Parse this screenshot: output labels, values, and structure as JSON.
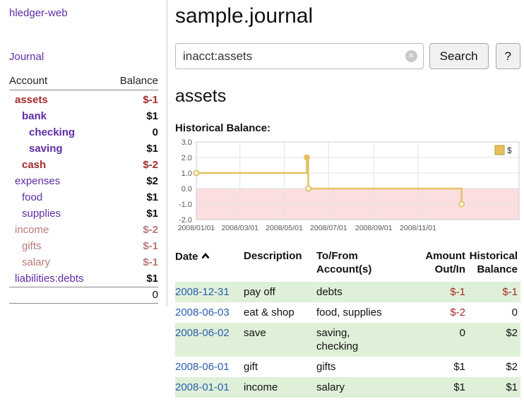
{
  "app_title": "hledger-web",
  "colors": {
    "purple": "#5f2ca5",
    "red": "#a32c2c",
    "rose": "#b97a7a",
    "date_blue": "#2a5db0",
    "row_green": "#dff0d8"
  },
  "sidebar": {
    "journal_link": "Journal",
    "accounts": {
      "header_account": "Account",
      "header_balance": "Balance",
      "rows": [
        {
          "account": "assets",
          "balance": "$-1",
          "indent": 0,
          "bold": true,
          "account_color": "red",
          "balance_color": "red"
        },
        {
          "account": "bank",
          "balance": "$1",
          "indent": 1,
          "bold": true,
          "account_color": "purple",
          "balance_color": "black"
        },
        {
          "account": "checking",
          "balance": "0",
          "indent": 2,
          "bold": true,
          "account_color": "purple",
          "balance_color": "black"
        },
        {
          "account": "saving",
          "balance": "$1",
          "indent": 2,
          "bold": true,
          "account_color": "purple",
          "balance_color": "black"
        },
        {
          "account": "cash",
          "balance": "$-2",
          "indent": 1,
          "bold": true,
          "account_color": "red",
          "balance_color": "red"
        },
        {
          "account": "expenses",
          "balance": "$2",
          "indent": 0,
          "bold": false,
          "account_color": "purple",
          "balance_color": "black"
        },
        {
          "account": "food",
          "balance": "$1",
          "indent": 1,
          "bold": false,
          "account_color": "purple",
          "balance_color": "black"
        },
        {
          "account": "supplies",
          "balance": "$1",
          "indent": 1,
          "bold": false,
          "account_color": "purple",
          "balance_color": "black"
        },
        {
          "account": "income",
          "balance": "$-2",
          "indent": 0,
          "bold": false,
          "account_color": "rose",
          "balance_color": "rose"
        },
        {
          "account": "gifts",
          "balance": "$-1",
          "indent": 1,
          "bold": false,
          "account_color": "rose",
          "balance_color": "rose"
        },
        {
          "account": "salary",
          "balance": "$-1",
          "indent": 1,
          "bold": false,
          "account_color": "rose",
          "balance_color": "rose"
        },
        {
          "account": "liabilities:debts",
          "balance": "$1",
          "indent": 0,
          "bold": false,
          "account_color": "purple",
          "balance_color": "black"
        }
      ],
      "total": "0"
    }
  },
  "main": {
    "title": "sample.journal",
    "search": {
      "value": "inacct:assets",
      "clear_icon": "×",
      "search_button": "Search",
      "help_button": "?"
    },
    "account_heading": "assets",
    "chart_title": "Historical Balance:"
  },
  "chart_data": {
    "type": "line",
    "title": "Historical Balance",
    "step": true,
    "legend": [
      {
        "label": "$",
        "color": "#e6c25e"
      }
    ],
    "ylim": [
      -2,
      3
    ],
    "yticks": [
      "3.0",
      "2.0",
      "1.0",
      "0.0",
      "-1.0",
      "-2.0"
    ],
    "xticks": [
      "2008/01/01",
      "2008/03/01",
      "2008/05/01",
      "2008/07/01",
      "2008/09/01",
      "2008/11/01"
    ],
    "series": [
      {
        "name": "$",
        "points": [
          [
            "2008-01-01",
            1
          ],
          [
            "2008-06-01",
            2
          ],
          [
            "2008-06-03",
            0
          ],
          [
            "2008-12-31",
            -1
          ]
        ]
      }
    ],
    "colors": {
      "line": "#e3c163",
      "negative_region": "#fbdee0",
      "grid": "#e3e3e3",
      "border": "#cccccc",
      "tick_text": "#555555"
    }
  },
  "transactions": {
    "headers": [
      "Date",
      "Description",
      "To/From Account(s)",
      "Amount Out/In",
      "Historical Balance"
    ],
    "rows": [
      {
        "date": "2008-12-31",
        "description": "pay off",
        "accounts": "debts",
        "amount": "$-1",
        "amount_neg": true,
        "balance": "$-1",
        "balance_neg": true,
        "shade": true
      },
      {
        "date": "2008-06-03",
        "description": "eat & shop",
        "accounts": "food, supplies",
        "amount": "$-2",
        "amount_neg": true,
        "balance": "0",
        "balance_neg": false,
        "shade": false
      },
      {
        "date": "2008-06-02",
        "description": "save",
        "accounts": "saving, checking",
        "amount": "0",
        "amount_neg": false,
        "balance": "$2",
        "balance_neg": false,
        "shade": true
      },
      {
        "date": "2008-06-01",
        "description": "gift",
        "accounts": "gifts",
        "amount": "$1",
        "amount_neg": false,
        "balance": "$2",
        "balance_neg": false,
        "shade": false
      },
      {
        "date": "2008-01-01",
        "description": "income",
        "accounts": "salary",
        "amount": "$1",
        "amount_neg": false,
        "balance": "$1",
        "balance_neg": false,
        "shade": true
      }
    ]
  }
}
